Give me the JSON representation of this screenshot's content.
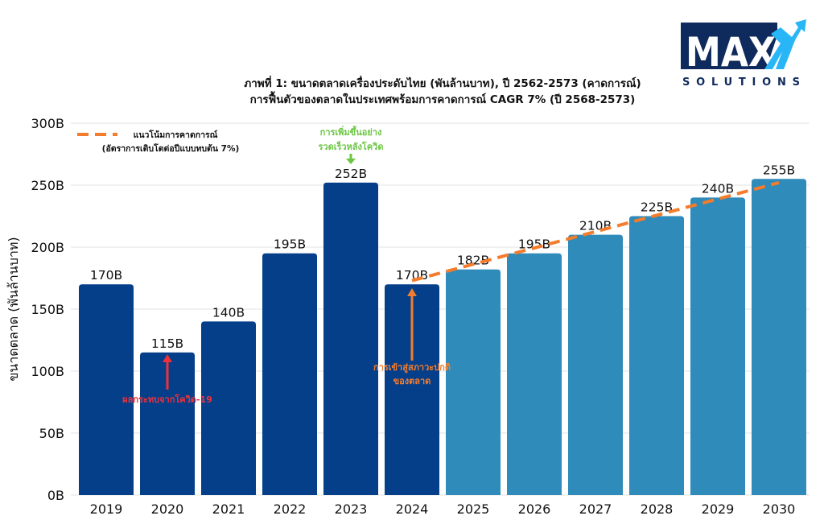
{
  "logo": {
    "main": "MAX",
    "sub": "SOLUTIONS",
    "navy": "#0f2a5c",
    "accent": "#29b6f6"
  },
  "chart_data": {
    "type": "bar",
    "title": "ภาพที่ 1: ขนาดตลาดเครื่องประดับไทย (พันล้านบาท), ปี 2562-2573 (คาดการณ์)",
    "subtitle": "การฟื้นตัวของตลาดในประเทศพร้อมการคาดการณ์ CAGR 7% (ปี 2568-2573)",
    "xlabel": "",
    "ylabel": "ขนาดตลาด (พันล้านบาท)",
    "ylim": [
      0,
      300
    ],
    "yticks": [
      0,
      50,
      100,
      150,
      200,
      250,
      300
    ],
    "ytick_labels": [
      "0B",
      "50B",
      "100B",
      "150B",
      "200B",
      "250B",
      "300B"
    ],
    "grid": true,
    "categories": [
      "2019",
      "2020",
      "2021",
      "2022",
      "2023",
      "2024",
      "2025",
      "2026",
      "2027",
      "2028",
      "2029",
      "2030"
    ],
    "values": [
      170,
      115,
      140,
      195,
      252,
      170,
      182,
      195,
      210,
      225,
      240,
      255
    ],
    "value_labels": [
      "170B",
      "115B",
      "140B",
      "195B",
      "252B",
      "170B",
      "182B",
      "195B",
      "210B",
      "225B",
      "240B",
      "255B"
    ],
    "bar_kind": [
      "actual",
      "actual",
      "actual",
      "actual",
      "actual",
      "actual",
      "forecast",
      "forecast",
      "forecast",
      "forecast",
      "forecast",
      "forecast"
    ],
    "colors": {
      "actual": "#053f8a",
      "forecast": "#2e8bba",
      "trend": "#f47c2c"
    },
    "trend_line": {
      "name": "แนวโน้มการคาดการณ์",
      "name_line2": "(อัตราการเติบโตต่อปีแบบทบต้น 7%)",
      "style": "dashed",
      "from": {
        "category": "2024",
        "value": 173
      },
      "to": {
        "category": "2030",
        "value": 252
      }
    },
    "legend": {
      "position": "top-left"
    },
    "annotations": [
      {
        "text": [
          "การเพิ่มขึ้นอย่าง",
          "รวดเร็วหลังโควิด"
        ],
        "category": "2023",
        "color": "#6cc644",
        "arrow": "down"
      },
      {
        "text": [
          "ผลกระทบจากโควิด-19"
        ],
        "category": "2020",
        "color": "#f0303a",
        "arrow": "up"
      },
      {
        "text": [
          "การเข้าสู่สภาวะปกติ",
          "ของตลาด"
        ],
        "category": "2024",
        "color": "#f47c2c",
        "arrow": "up"
      }
    ]
  }
}
